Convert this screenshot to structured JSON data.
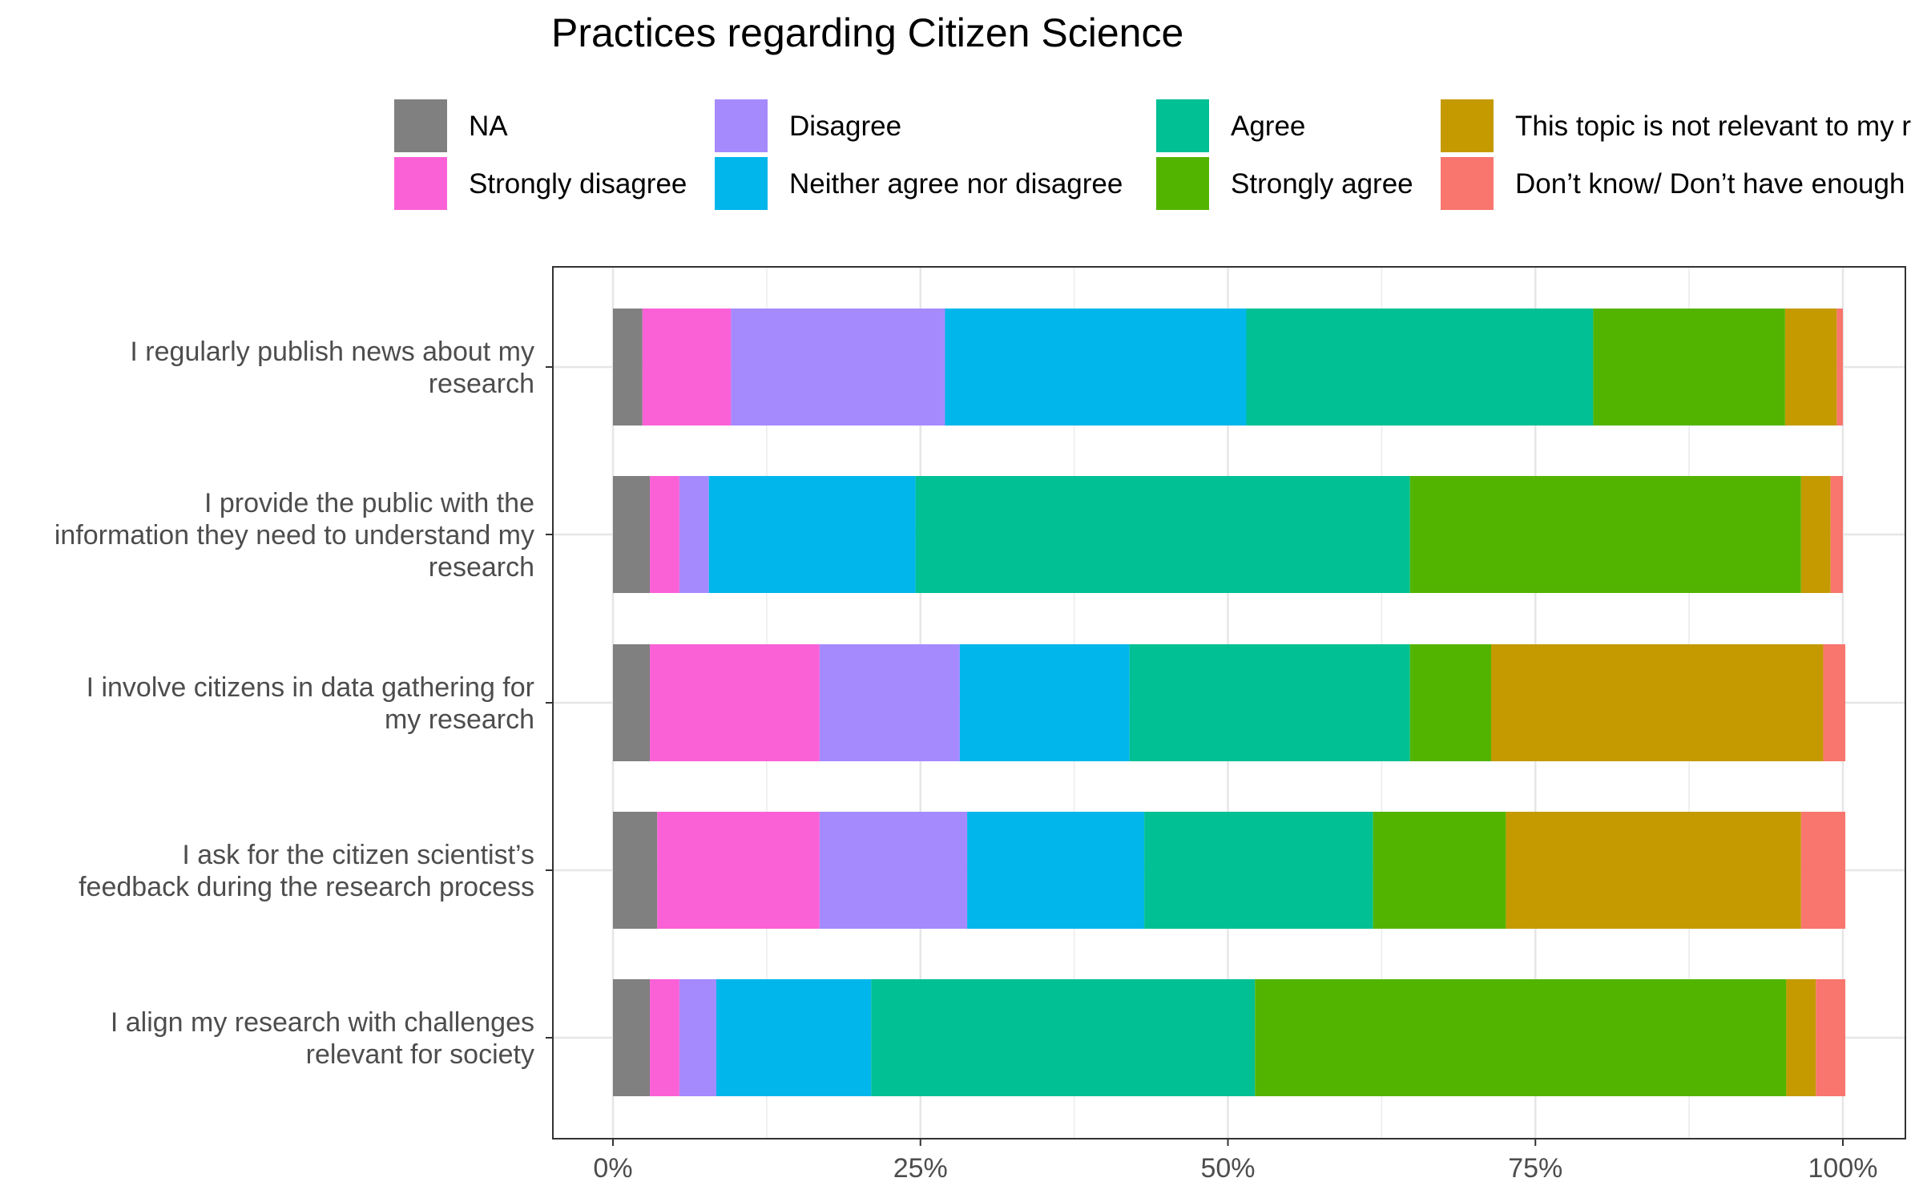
{
  "chart_data": {
    "type": "bar",
    "orientation": "horizontal",
    "stacked": true,
    "percent": true,
    "title": "Practices regarding Citizen Science",
    "xlabel": "",
    "ylabel": "",
    "xlim": [
      0,
      1
    ],
    "x_ticks": [
      "0%",
      "25%",
      "50%",
      "75%",
      "100%"
    ],
    "grid": true,
    "legend_position": "top",
    "categories": [
      "I regularly publish news about my research",
      "I provide the public with the information they need to understand my research",
      "I involve citizens in data gathering for my research",
      "I ask for the citizen scientist’s feedback during the research process",
      "I align my research with challenges relevant for society"
    ],
    "category_lines": [
      [
        "I regularly publish news about my",
        "research"
      ],
      [
        "I provide the public with the",
        "information they need to understand my",
        "research"
      ],
      [
        "I involve citizens in data gathering for",
        "my research"
      ],
      [
        "I ask for the citizen scientist’s",
        "feedback during the research process"
      ],
      [
        "I align my research with challenges",
        "relevant for society"
      ]
    ],
    "series": [
      {
        "name": "NA",
        "color": "#808080",
        "values": [
          0.024,
          0.03,
          0.03,
          0.036,
          0.03
        ]
      },
      {
        "name": "Strongly disagree",
        "color": "#fb61d7",
        "values": [
          0.072,
          0.024,
          0.138,
          0.132,
          0.024
        ]
      },
      {
        "name": "Disagree",
        "color": "#a58afe",
        "values": [
          0.174,
          0.024,
          0.114,
          0.12,
          0.03
        ]
      },
      {
        "name": "Neither agree nor disagree",
        "color": "#00b6eb",
        "values": [
          0.245,
          0.168,
          0.138,
          0.144,
          0.126
        ]
      },
      {
        "name": "Agree",
        "color": "#00c094",
        "values": [
          0.282,
          0.402,
          0.228,
          0.186,
          0.312
        ]
      },
      {
        "name": "Strongly agree",
        "color": "#53b400",
        "values": [
          0.156,
          0.318,
          0.066,
          0.108,
          0.432
        ]
      },
      {
        "name": "This topic is not relevant to my r",
        "color": "#c49a00",
        "values": [
          0.042,
          0.024,
          0.27,
          0.24,
          0.024
        ]
      },
      {
        "name": "Don’t know/ Don’t have enough",
        "color": "#f8766d",
        "values": [
          0.005,
          0.01,
          0.018,
          0.036,
          0.024
        ]
      }
    ]
  }
}
